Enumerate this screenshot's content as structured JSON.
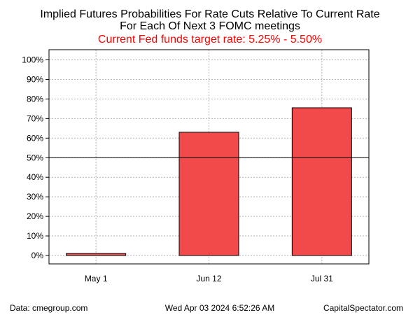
{
  "chart_data": {
    "type": "bar",
    "title_lines": [
      "Implied Futures Probabilities For Rate Cuts Relative To Current Rate",
      "For Each Of Next 3 FOMC meetings"
    ],
    "subtitle": "Current Fed funds target rate: 5.25% - 5.50%",
    "subtitle_color": "#ff0000",
    "categories": [
      "May 1",
      "Jun 12",
      "Jul 31"
    ],
    "values": [
      1,
      63,
      75.5
    ],
    "value_unit": "%",
    "ylim": [
      0,
      100
    ],
    "yticks": [
      0,
      10,
      20,
      30,
      40,
      50,
      60,
      70,
      80,
      90,
      100
    ],
    "ytick_labels": [
      "0%",
      "10%",
      "20%",
      "30%",
      "40%",
      "50%",
      "60%",
      "70%",
      "80%",
      "90%",
      "100%"
    ],
    "reference_line": 50,
    "bar_color": "#f24a4a",
    "grid": true,
    "grid_color": "#b5b5b5",
    "xlabel": "",
    "ylabel": ""
  },
  "footer": {
    "source": "Data: cmegroup.com",
    "timestamp": "Wed Apr 03 2024 6:52:26 AM",
    "brand": "CapitalSpectator.com"
  }
}
